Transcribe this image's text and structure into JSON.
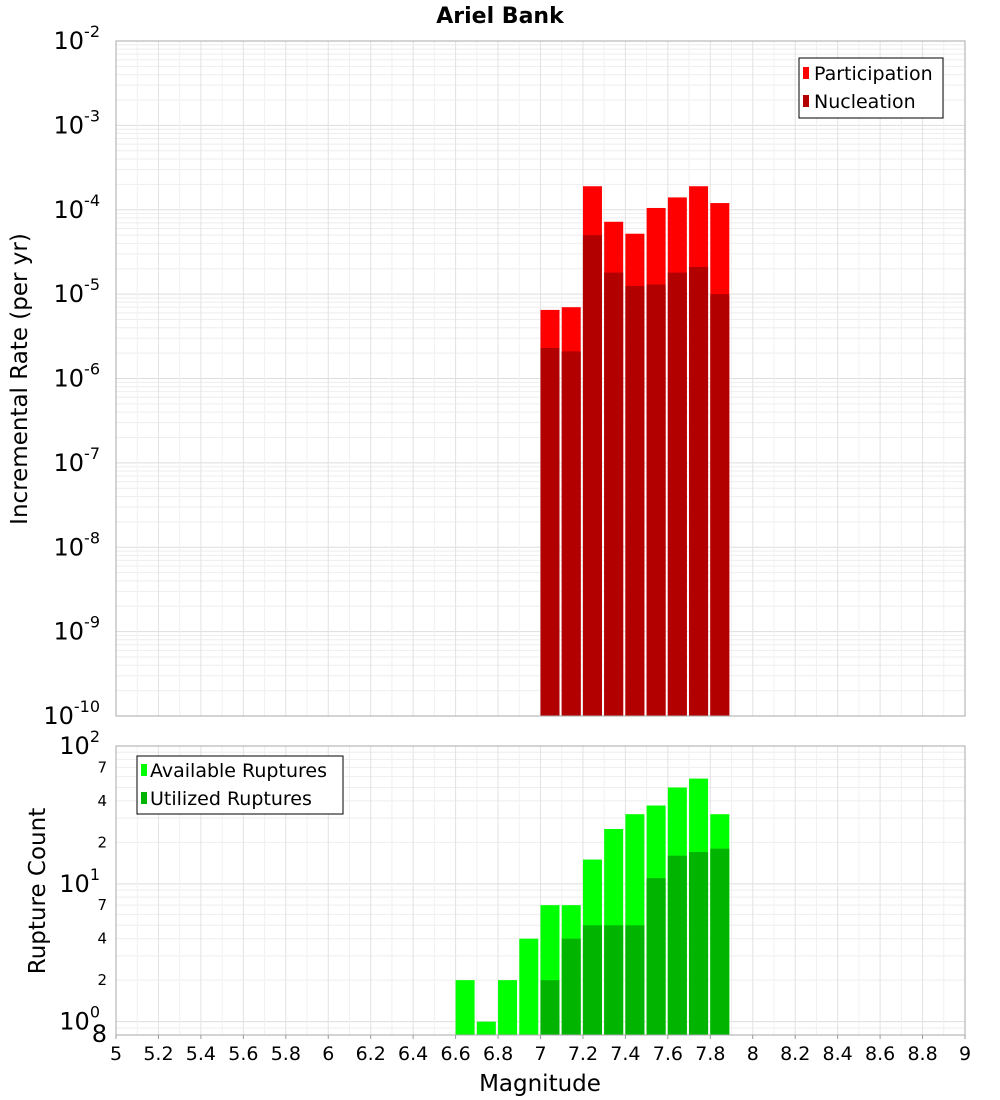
{
  "chart_data": [
    {
      "type": "bar",
      "title": "Ariel Bank",
      "ylabel": "Incremental Rate (per yr)",
      "yscale": "log",
      "ylim": [
        1e-10,
        0.01
      ],
      "xlim": [
        5,
        9
      ],
      "legend": "top-right",
      "grid": true,
      "x": [
        7.0,
        7.1,
        7.2,
        7.3,
        7.4,
        7.5,
        7.6,
        7.7,
        7.8
      ],
      "series": [
        {
          "name": "Participation",
          "color": "#ff0000",
          "values": [
            6.5e-06,
            7e-06,
            0.00019,
            7.2e-05,
            5.2e-05,
            0.000105,
            0.00014,
            0.00019,
            0.00012
          ]
        },
        {
          "name": "Nucleation",
          "color": "#b20000",
          "values": [
            2.3e-06,
            2.1e-06,
            5e-05,
            1.8e-05,
            1.25e-05,
            1.3e-05,
            1.8e-05,
            2.1e-05,
            1e-05
          ]
        }
      ],
      "ytick_labels": [
        {
          "base": "10",
          "exp": "-2"
        },
        {
          "base": "10",
          "exp": "-3"
        },
        {
          "base": "10",
          "exp": "-4"
        },
        {
          "base": "10",
          "exp": "-5"
        },
        {
          "base": "10",
          "exp": "-6"
        },
        {
          "base": "10",
          "exp": "-7"
        },
        {
          "base": "10",
          "exp": "-8"
        },
        {
          "base": "10",
          "exp": "-9"
        },
        {
          "base": "10",
          "exp": "-10"
        }
      ]
    },
    {
      "type": "bar",
      "ylabel": "Rupture Count",
      "xlabel": "Magnitude",
      "yscale": "log",
      "ylim": [
        0.8,
        100
      ],
      "xlim": [
        5,
        9
      ],
      "legend": "top-left",
      "grid": true,
      "x": [
        6.6,
        6.7,
        6.8,
        6.9,
        7.0,
        7.1,
        7.2,
        7.3,
        7.4,
        7.5,
        7.6,
        7.7,
        7.8
      ],
      "series": [
        {
          "name": "Available Ruptures",
          "color": "#00ff00",
          "values": [
            2,
            1,
            2,
            4,
            7,
            7,
            15,
            25,
            32,
            37,
            50,
            58,
            32
          ]
        },
        {
          "name": "Utilized Ruptures",
          "color": "#00b400",
          "values": [
            0,
            0,
            0,
            0,
            2,
            4,
            5,
            5,
            5,
            11,
            16,
            17,
            18
          ]
        }
      ],
      "ytick_labels": [
        {
          "base": "10",
          "exp": "2"
        },
        {
          "base": "10",
          "exp": "1"
        },
        {
          "base": "10",
          "exp": "0"
        }
      ],
      "minor_tick_labels": [
        "7",
        "4",
        "2",
        "7",
        "4",
        "2",
        "8"
      ],
      "xtick_labels": [
        "5",
        "5.2",
        "5.4",
        "5.6",
        "5.8",
        "6",
        "6.2",
        "6.4",
        "6.6",
        "6.8",
        "7",
        "7.2",
        "7.4",
        "7.6",
        "7.8",
        "8",
        "8.2",
        "8.4",
        "8.6",
        "8.8",
        "9"
      ]
    }
  ]
}
